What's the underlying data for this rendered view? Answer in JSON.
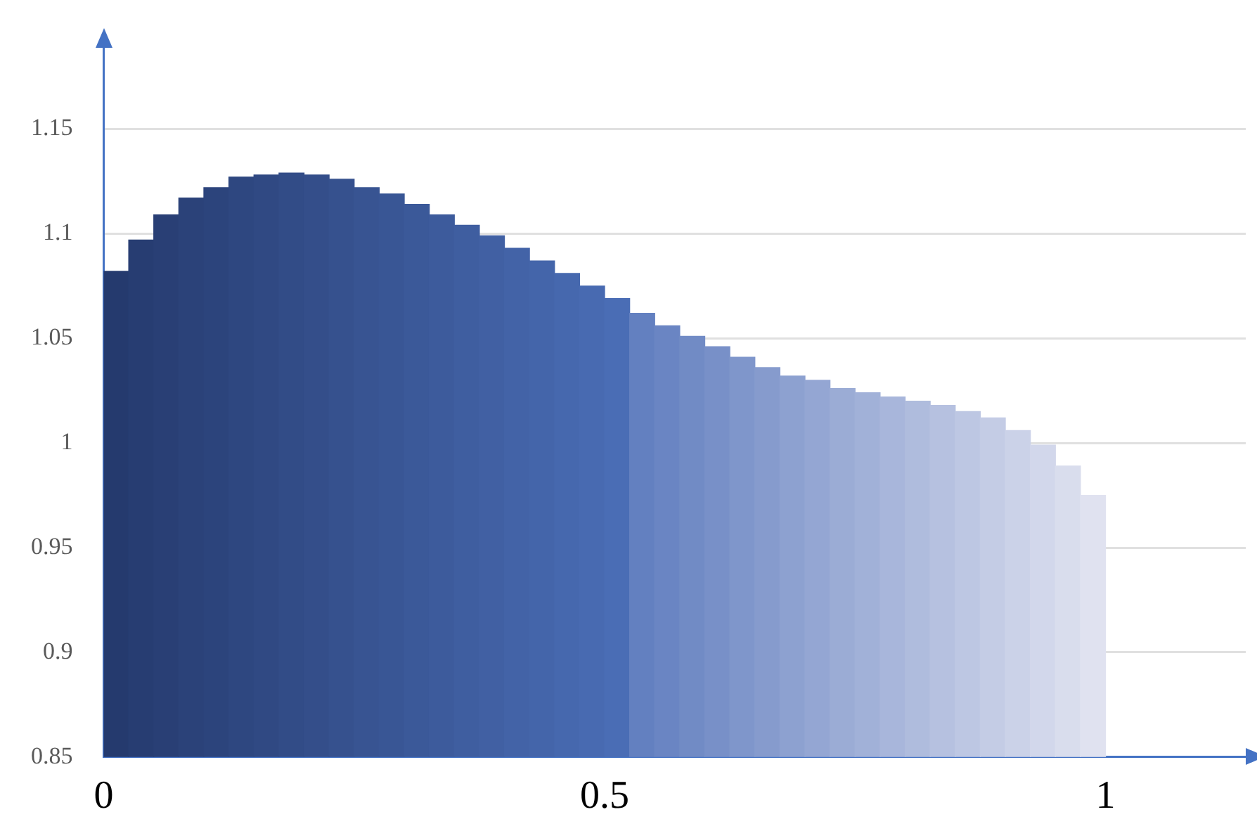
{
  "chart_data": {
    "type": "histogram",
    "bins": [
      0,
      0.025,
      0.05,
      0.075,
      0.1,
      0.125,
      0.15,
      0.175,
      0.2,
      0.225,
      0.25,
      0.275,
      0.3,
      0.325,
      0.35,
      0.375,
      0.4,
      0.425,
      0.45,
      0.475,
      0.5,
      0.525,
      0.55,
      0.575,
      0.6,
      0.625,
      0.65,
      0.675,
      0.7,
      0.725,
      0.75,
      0.775,
      0.8,
      0.825,
      0.85,
      0.875,
      0.9,
      0.925,
      0.95,
      0.975,
      1
    ],
    "values": [
      1.082,
      1.097,
      1.109,
      1.117,
      1.122,
      1.127,
      1.128,
      1.129,
      1.128,
      1.126,
      1.122,
      1.119,
      1.114,
      1.109,
      1.104,
      1.099,
      1.093,
      1.087,
      1.081,
      1.075,
      1.069,
      1.062,
      1.056,
      1.051,
      1.046,
      1.041,
      1.036,
      1.032,
      1.03,
      1.026,
      1.024,
      1.022,
      1.02,
      1.018,
      1.015,
      1.012,
      1.006,
      0.999,
      0.989,
      0.975
    ],
    "colors": [
      "#253a6e",
      "#273d72",
      "#293f75",
      "#2b4279",
      "#2c447c",
      "#2e4780",
      "#304983",
      "#324c87",
      "#344e8a",
      "#36518e",
      "#385492",
      "#395695",
      "#3b5999",
      "#3d5b9c",
      "#3f5ea0",
      "#4160a3",
      "#4363a7",
      "#4465aa",
      "#4668ae",
      "#486ab1",
      "#4a6db5",
      "#6380c0",
      "#6a85c3",
      "#718bc5",
      "#7890c8",
      "#7f96cb",
      "#869bcd",
      "#8da1d0",
      "#94a6d3",
      "#9bacd5",
      "#a1b1d8",
      "#a8b6db",
      "#afbcdd",
      "#b6c1e0",
      "#bdc7e3",
      "#c4cce5",
      "#cbd2e8",
      "#d2d7eb",
      "#d9dded",
      "#e0e2f0"
    ],
    "xlim": [
      0,
      1.14
    ],
    "xticks": [
      0,
      0.5,
      1
    ],
    "ylim": [
      0.85,
      1.19
    ],
    "yticks": [
      0.85,
      0.9,
      0.95,
      1,
      1.05,
      1.1,
      1.15
    ],
    "grid": "y",
    "legend": false
  }
}
